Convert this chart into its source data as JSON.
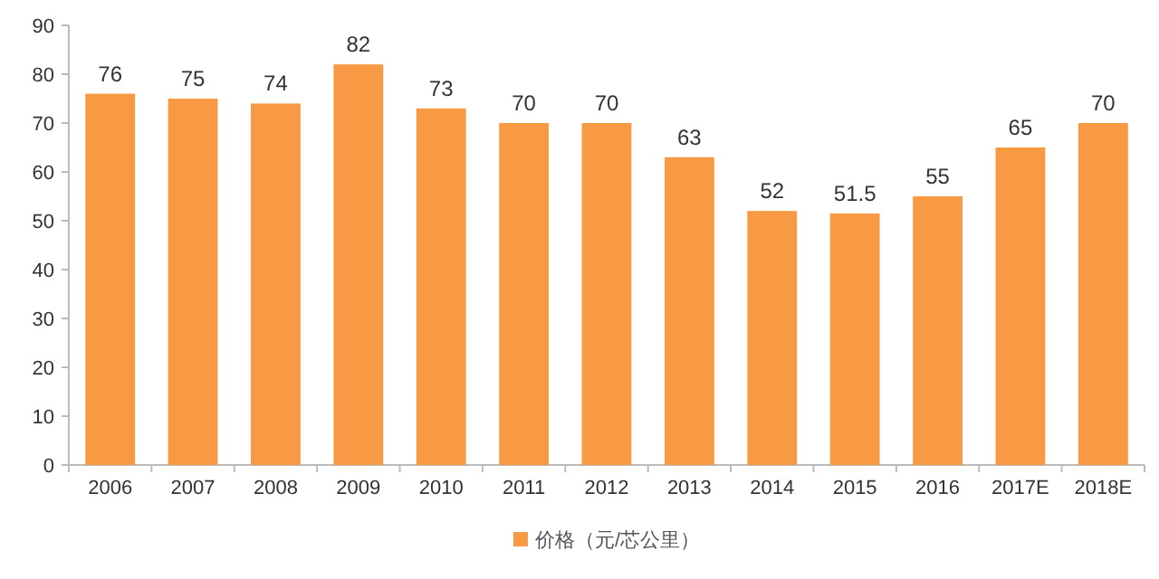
{
  "chart_data": {
    "type": "bar",
    "categories": [
      "2006",
      "2007",
      "2008",
      "2009",
      "2010",
      "2011",
      "2012",
      "2013",
      "2014",
      "2015",
      "2016",
      "2017E",
      "2018E"
    ],
    "series": [
      {
        "name": "价格（元/芯公里）",
        "color": "#f79a43",
        "values": [
          76,
          75,
          74,
          82,
          73,
          70,
          70,
          63,
          52,
          51.5,
          55,
          65,
          70
        ]
      }
    ],
    "ylim": [
      0,
      90
    ],
    "yticks": [
      0,
      10,
      20,
      30,
      40,
      50,
      60,
      70,
      80,
      90
    ],
    "data_labels": true,
    "legend": "bottom",
    "grid": false
  }
}
